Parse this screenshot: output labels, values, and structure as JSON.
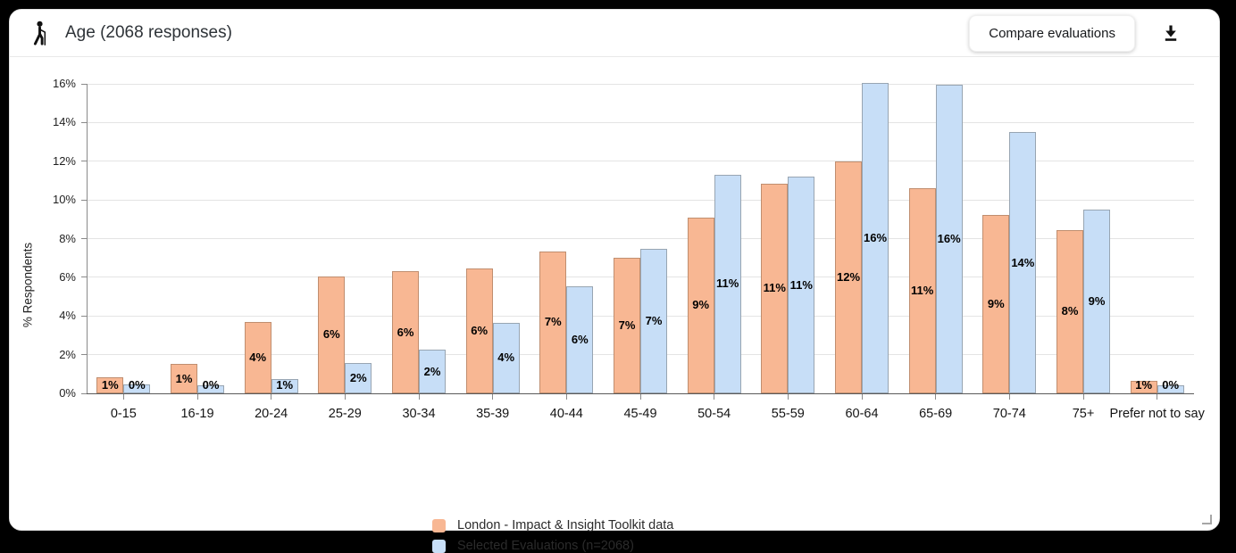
{
  "header": {
    "title": "Age (2068 responses)",
    "compare_button": "Compare evaluations"
  },
  "icons": {
    "header_icon": "elderly-person-icon",
    "download_icon": "download-icon",
    "resize_icon": "resize-handle"
  },
  "chart_data": {
    "type": "bar",
    "title": "Age (2068 responses)",
    "xlabel": "",
    "ylabel": "% Respondents",
    "ylim": [
      0,
      16
    ],
    "ytick_step": 2,
    "ytick_suffix": "%",
    "grid": true,
    "legend_position": "bottom",
    "categories": [
      "0-15",
      "16-19",
      "20-24",
      "25-29",
      "30-34",
      "35-39",
      "40-44",
      "45-49",
      "50-54",
      "55-59",
      "60-64",
      "65-69",
      "70-74",
      "75+",
      "Prefer not to say"
    ],
    "series": [
      {
        "name": "London - Impact & Insight Toolkit data",
        "color": "#f8b793",
        "border_color": "#c08e6f",
        "values": [
          0.85,
          1.5,
          3.7,
          6.05,
          6.3,
          6.45,
          7.35,
          7.0,
          9.1,
          10.85,
          12.0,
          10.6,
          9.2,
          8.45,
          0.65
        ],
        "labels": [
          "1%",
          "1%",
          "4%",
          "6%",
          "6%",
          "6%",
          "7%",
          "7%",
          "9%",
          "11%",
          "12%",
          "11%",
          "9%",
          "8%",
          "1%"
        ]
      },
      {
        "name": "Selected Evaluations (n=2068)",
        "color": "#c7def7",
        "border_color": "#98a5b2",
        "values": [
          0.45,
          0.4,
          0.75,
          1.55,
          2.25,
          3.65,
          5.55,
          7.45,
          11.3,
          11.2,
          16.05,
          15.95,
          13.5,
          9.5,
          0.4
        ],
        "labels": [
          "0%",
          "0%",
          "1%",
          "2%",
          "2%",
          "4%",
          "6%",
          "7%",
          "11%",
          "11%",
          "16%",
          "16%",
          "14%",
          "9%",
          "0%"
        ]
      }
    ]
  }
}
